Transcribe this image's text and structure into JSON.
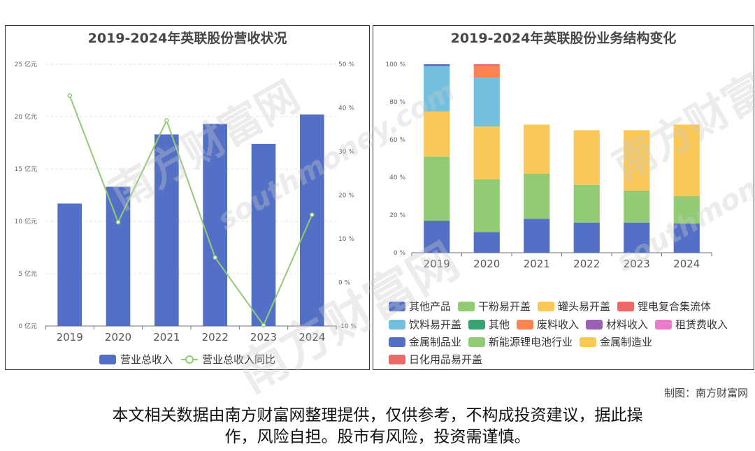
{
  "chart_data": [
    {
      "type": "bar",
      "title": "2019-2024年英联股份营收状况",
      "categories": [
        "2019",
        "2020",
        "2021",
        "2022",
        "2023",
        "2024"
      ],
      "series": [
        {
          "name": "营业总收入",
          "type": "bar",
          "axis": "left",
          "color": "#5470c6",
          "values": [
            11.7,
            13.3,
            18.3,
            19.3,
            17.4,
            20.2
          ]
        },
        {
          "name": "营业总收入同比",
          "type": "line",
          "axis": "right",
          "color": "#91cc75",
          "values": [
            42.8,
            13.8,
            37.1,
            5.7,
            -9.8,
            15.5
          ]
        }
      ],
      "y_left": {
        "ticks": [
          "0 亿元",
          "5 亿元",
          "10 亿元",
          "15 亿元",
          "20 亿元",
          "25 亿元"
        ],
        "ylim": [
          0,
          25
        ]
      },
      "y_right": {
        "ticks": [
          "-10 %",
          "0 %",
          "10 %",
          "20 %",
          "30 %",
          "40 %",
          "50 %"
        ],
        "ylim": [
          -10,
          50
        ]
      },
      "legend_position": "bottom",
      "grid": true
    },
    {
      "type": "bar",
      "stacked": true,
      "title": "2019-2024年英联股份业务结构变化",
      "categories": [
        "2019",
        "2020",
        "2021",
        "2022",
        "2023",
        "2024"
      ],
      "y_ticks": [
        "0 %",
        "20 %",
        "40 %",
        "60 %",
        "80 %",
        "100 %"
      ],
      "ylim": [
        0,
        100
      ],
      "series": [
        {
          "name": "其他产品",
          "color": "#5470c6",
          "values": [
            17,
            11,
            0,
            0,
            0,
            0
          ]
        },
        {
          "name": "干粉易开盖",
          "color": "#91cc75",
          "values": [
            34,
            28,
            0,
            0,
            0,
            0
          ]
        },
        {
          "name": "罐头易开盖",
          "color": "#fac858",
          "values": [
            24,
            28,
            0,
            0,
            0,
            0
          ]
        },
        {
          "name": "锂电复合集流体",
          "color": "#ee6666",
          "values": [
            0,
            0,
            0,
            0,
            0,
            0
          ]
        },
        {
          "name": "饮料易开盖",
          "color": "#73c0de",
          "values": [
            24,
            26,
            0,
            0,
            0,
            0
          ]
        },
        {
          "name": "其他",
          "color": "#3ba272",
          "values": [
            0,
            0,
            0,
            0,
            0,
            0
          ]
        },
        {
          "name": "废料收入",
          "color": "#fc8452",
          "values": [
            0,
            6,
            0,
            0,
            0,
            0
          ]
        },
        {
          "name": "材料收入",
          "color": "#9a60b4",
          "values": [
            0,
            0,
            0,
            0,
            0,
            0
          ]
        },
        {
          "name": "租赁费收入",
          "color": "#ea7ccc",
          "values": [
            0,
            0,
            0,
            0,
            0,
            0
          ]
        },
        {
          "name": "金属制品业",
          "color": "#5470c6",
          "values": [
            1,
            0,
            18,
            16,
            16,
            15.5
          ]
        },
        {
          "name": "新能源锂电池行业",
          "color": "#91cc75",
          "values": [
            0,
            0,
            24,
            20,
            17,
            14.5
          ]
        },
        {
          "name": "金属制造业",
          "color": "#fac858",
          "values": [
            0,
            0,
            26,
            29,
            32,
            38
          ]
        },
        {
          "name": "日化用品易开盖",
          "color": "#ee6666",
          "values": [
            0,
            1,
            0,
            0,
            0,
            0
          ]
        }
      ],
      "legend_position": "bottom",
      "grid": false
    }
  ],
  "watermark": {
    "cn": "南方财富网",
    "en": "southmoney.com"
  },
  "credit": "制图：南方财富网",
  "disclaimer_line1": "本文相关数据由南方财富网整理提供，仅供参考，不构成投资建议，据此操",
  "disclaimer_line2": "作，风险自担。股市有风险，投资需谨慎。"
}
